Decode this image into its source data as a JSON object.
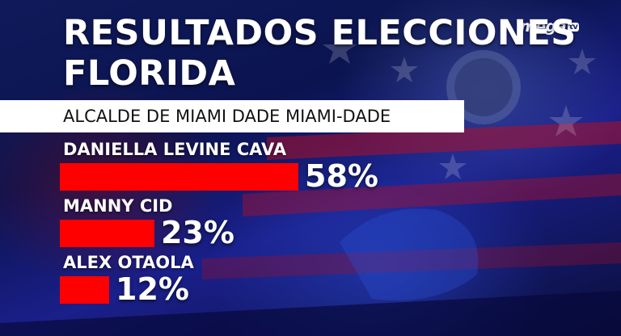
{
  "header": {
    "title_line1": "RESULTADOS ELECCIONES",
    "title_line2": "FLORIDA",
    "logo_word": "mega",
    "logo_tv": "tv"
  },
  "office": "ALCALDE DE MIAMI DADE MIAMI-DADE",
  "chart_data": {
    "type": "bar",
    "orientation": "horizontal",
    "title": "RESULTADOS ELECCIONES FLORIDA",
    "subtitle": "ALCALDE DE MIAMI DADE MIAMI-DADE",
    "categories": [
      "DANIELLA LEVINE CAVA",
      "MANNY CID",
      "ALEX OTAOLA"
    ],
    "values": [
      58,
      23,
      12
    ],
    "labels": [
      "58%",
      "23%",
      "12%"
    ],
    "bar_color": "#ff0000",
    "xlim": [
      0,
      100
    ],
    "grid": false
  },
  "colors": {
    "bar": "#ff0000",
    "background": "#0b1450",
    "text": "#ffffff",
    "banner": "#ffffff"
  },
  "background_motifs": [
    "us-flag",
    "voted-button"
  ]
}
